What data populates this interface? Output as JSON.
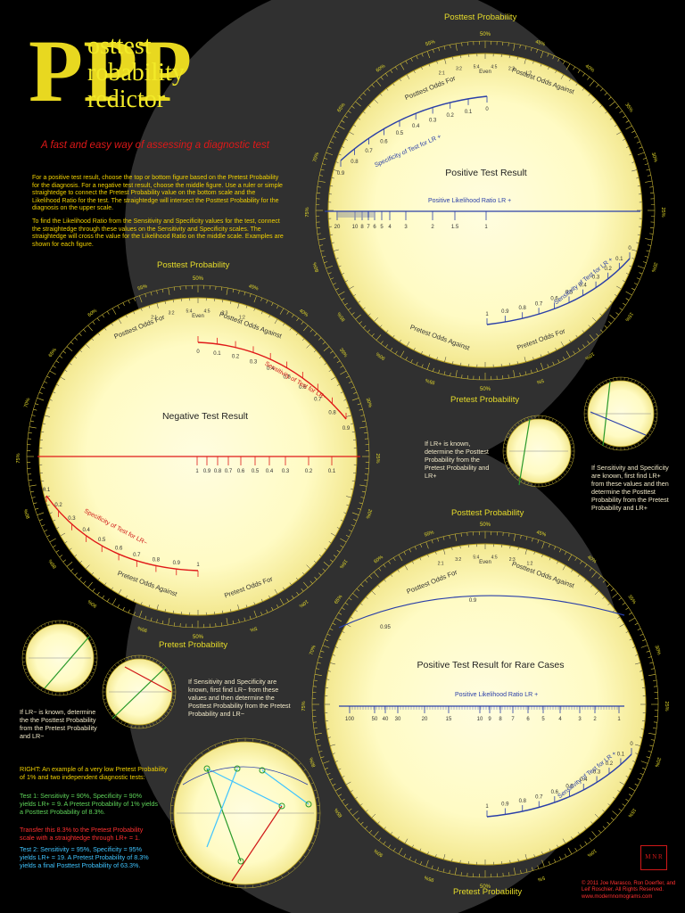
{
  "header": {
    "letters": "PPP",
    "line1": "osttest",
    "line2": "robability",
    "line3": "redictor",
    "subtitle": "A fast and easy way of assessing a diagnostic test"
  },
  "intro": {
    "p1": "For a positive test result, choose the top or bottom figure based on the Pretest Probability for the diagnosis. For a negative test result, choose the middle figure. Use a ruler or simple straightedge to connect the Pretest Probability value on the bottom scale and the Likelihood Ratio for the test. The straightedge will intersect the Posttest Probability for the diagnosis on the upper scale.",
    "p2": "To find the Likelihood Ratio from the Sensitivity and Specificity values for the test, connect the straightedge through these values on the Sensitivity and Specificity scales. The straightedge will cross the value for the Likelihood Ratio on the middle scale. Examples are shown for each figure."
  },
  "charts": {
    "top": {
      "heading": "Positive Test Result",
      "outer_top": "Posttest Probability",
      "outer_bottom": "Pretest Probability",
      "odds_for_top": "Posttest Odds For",
      "odds_against_top": "Posttest Odds Against",
      "odds_for_bottom": "Pretest Odds For",
      "odds_against_bottom": "Pretest Odds Against",
      "even": "Even",
      "fifty": "50%",
      "scale_upper": "Specificity of Test  for LR +",
      "scale_middle": "Positive Likelihood Ratio  LR +",
      "scale_lower": "Sensitivity of Test  for LR +",
      "upper_ticks": [
        "0.9",
        "0.8",
        "0.7",
        "0.6",
        "0.5",
        "0.4",
        "0.3",
        "0.2",
        "0.1",
        "0"
      ],
      "middle_ticks": [
        "20",
        "10",
        "8",
        "7",
        "6",
        "5",
        "4",
        "3",
        "2",
        "1.5",
        "1"
      ],
      "lower_ticks": [
        "1",
        "0.9",
        "0.8",
        "0.7",
        "0.6",
        "0.5",
        "0.4",
        "0.3",
        "0.2",
        "0.1",
        "0"
      ],
      "percent_left": [
        "95%",
        "90%",
        "85%",
        "80%",
        "75%",
        "70%",
        "65%",
        "60%",
        "55%"
      ],
      "percent_right": [
        "45%",
        "40%",
        "35%",
        "30%",
        "25%",
        "20%",
        "15%",
        "10%",
        "5%"
      ],
      "odds_top": [
        "2:1",
        "3:2",
        "5:4",
        "4:5",
        "2:3",
        "1:2"
      ]
    },
    "middle": {
      "heading": "Negative Test Result",
      "outer_top": "Posttest Probability",
      "outer_bottom": "Pretest Probability",
      "odds_for_top": "Posttest Odds For",
      "odds_against_top": "Posttest Odds Against",
      "odds_for_bottom": "Pretest Odds For",
      "odds_against_bottom": "Pretest Odds Against",
      "even": "Even",
      "fifty": "50%",
      "scale_upper": "Sensitivity of Test  for LR−",
      "scale_lower": "Specificity of Test  for LR−",
      "upper_ticks": [
        "0",
        "0.1",
        "0.2",
        "0.3",
        "0.4",
        "0.5",
        "0.6",
        "0.7",
        "0.8",
        "0.9"
      ],
      "middle_ticks": [
        "1",
        "0.9",
        "0.8",
        "0.7",
        "0.6",
        "0.5",
        "0.4",
        "0.3",
        "0.2",
        "0.1"
      ],
      "lower_ticks": [
        "0.1",
        "0.2",
        "0.3",
        "0.4",
        "0.5",
        "0.6",
        "0.7",
        "0.8",
        "0.9",
        "1"
      ],
      "percent_left": [
        "95%",
        "90%",
        "85%",
        "80%",
        "75%",
        "70%",
        "65%",
        "60%",
        "55%"
      ],
      "percent_right": [
        "45%",
        "40%",
        "35%",
        "30%",
        "25%",
        "20%",
        "15%",
        "10%",
        "5%"
      ],
      "odds_top": [
        "2:1",
        "3:2",
        "5:4",
        "4:5",
        "2:3",
        "1:2"
      ]
    },
    "bottom": {
      "heading": "Positive Test Result for Rare Cases",
      "outer_top": "Posttest Probability",
      "outer_bottom": "Pretest Probability",
      "odds_for_top": "Posttest Odds For",
      "odds_against_top": "Posttest Odds Against",
      "even": "Even",
      "fifty": "50%",
      "scale_upper_ticks": [
        "0.95",
        "0.9"
      ],
      "scale_middle": "Positive Likelihood Ratio  LR +",
      "scale_lower": "Sensitivity of Test  for LR +",
      "middle_ticks": [
        "100",
        "50",
        "40",
        "30",
        "20",
        "15",
        "10",
        "9",
        "8",
        "7",
        "6",
        "5",
        "4",
        "3",
        "2",
        "1"
      ],
      "lower_ticks": [
        "1",
        "0.9",
        "0.8",
        "0.7",
        "0.6",
        "0.5",
        "0.4",
        "0.3",
        "0.2",
        "0.1",
        "0"
      ],
      "percent_left": [
        "95%",
        "90%",
        "85%",
        "80%",
        "75%",
        "70%",
        "65%",
        "60%",
        "55%"
      ],
      "percent_right": [
        "45%",
        "40%",
        "35%",
        "30%",
        "25%",
        "20%",
        "15%",
        "10%",
        "5%"
      ],
      "bottom_pct": [
        "5%",
        "10%",
        "1%"
      ],
      "odds_top": [
        "2:1",
        "3:2",
        "5:4",
        "4:5",
        "2:3",
        "1:2"
      ]
    }
  },
  "notes": {
    "lr_plus": "If LR+ is known, determine the Posttest Probability from the Pretest Probability and LR+",
    "sens_spec_plus": "If Sensitivity and Specificity are known, first find LR+ from these values and then determine the Posttest Probability from the Pretest Probability and LR+",
    "lr_minus": "If LR− is known, determine the the Posttest Probability from the Pretest Probability and LR−",
    "sens_spec_minus": "If Sensitivity and Specificity are known, first find LR− from these values and then determine the Posttest Probability from the Pretest Probability and LR−",
    "example_head": "RIGHT:  An example of a very low Pretest Probability of 1% and two independent diagnostic tests:",
    "example_t1": "Test 1:  Sensitivity = 90%, Specificity  = 90% yields LR+ = 9. A Pretest Probability of 1% yields a Posttest Probability of 8.3%.",
    "example_transfer": "Transfer this 8.3% to the Pretest Probability scale with a straightedge through LR+ = 1.",
    "example_t2": "Test 2:  Sensitivity = 95%, Specificity  = 95% yields LR+ = 19. A Pretest Probability of 8.3% yields a  final Posttest Probability of 63.3%.",
    "copyright": "© 2011 Joe Marasco, Ron Doerfler, and Leif Roschier. All Rights Reserved. www.modernnomograms.com"
  },
  "logo": {
    "text": "M N R"
  },
  "colors": {
    "background": "#000000",
    "circle": "#fffbc8",
    "circle_edge": "#e8d970",
    "title_yellow": "#f2ea28",
    "accent_red": "#e01818",
    "accent_blue": "#2a3fa8",
    "text_yellow": "#f0d000",
    "note_blue": "#3fc4ff"
  }
}
